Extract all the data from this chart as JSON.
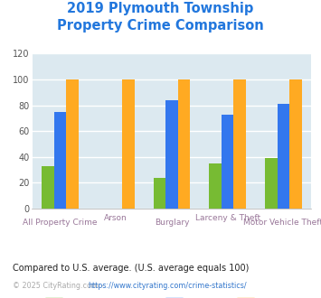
{
  "title_line1": "2019 Plymouth Township",
  "title_line2": "Property Crime Comparison",
  "title_color": "#2277dd",
  "categories": [
    "All Property Crime",
    "Arson",
    "Burglary",
    "Larceny & Theft",
    "Motor Vehicle Theft"
  ],
  "series": {
    "Plymouth Township": [
      33,
      0,
      24,
      35,
      39
    ],
    "Michigan": [
      75,
      0,
      84,
      73,
      81
    ],
    "National": [
      100,
      100,
      100,
      100,
      100
    ]
  },
  "colors": {
    "Plymouth Township": "#77bb33",
    "Michigan": "#3377ee",
    "National": "#ffaa22"
  },
  "ylim": [
    0,
    120
  ],
  "yticks": [
    0,
    20,
    40,
    60,
    80,
    100,
    120
  ],
  "background_color": "#dce9f0",
  "grid_color": "#ffffff",
  "xlabel_color": "#997799",
  "footnote1": "Compared to U.S. average. (U.S. average equals 100)",
  "footnote1_color": "#222222",
  "footnote2_prefix": "© 2025 CityRating.com - ",
  "footnote2_url": "https://www.cityrating.com/crime-statistics/",
  "footnote2_color": "#aaaaaa",
  "footnote2_url_color": "#3377cc"
}
